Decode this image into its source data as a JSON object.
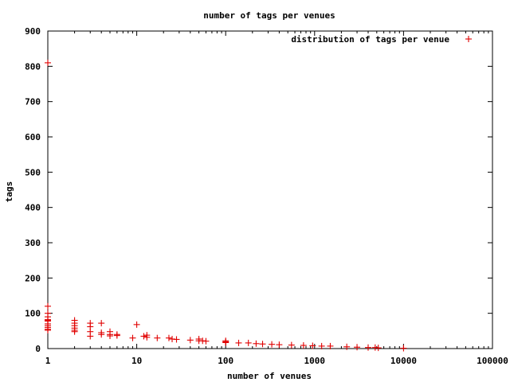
{
  "chart_data": {
    "type": "scatter",
    "title": "number of tags per venues",
    "xlabel": "number of venues",
    "ylabel": "tags",
    "x_scale": "log",
    "xlim": [
      1,
      100000
    ],
    "ylim": [
      0,
      900
    ],
    "x_ticks": [
      "1",
      "10",
      "100",
      "1000",
      "10000",
      "100000"
    ],
    "y_ticks": [
      "0",
      "100",
      "200",
      "300",
      "400",
      "500",
      "600",
      "700",
      "800",
      "900"
    ],
    "grid": false,
    "legend_position": "top-right",
    "series": [
      {
        "name": "distribution of tags per venue",
        "color": "#e00000",
        "marker": "plus",
        "points": [
          [
            1,
            810
          ],
          [
            1,
            120
          ],
          [
            1,
            100
          ],
          [
            1,
            90
          ],
          [
            1,
            82
          ],
          [
            1,
            80
          ],
          [
            1,
            78
          ],
          [
            1,
            70
          ],
          [
            1,
            65
          ],
          [
            1,
            60
          ],
          [
            1,
            55
          ],
          [
            1,
            52
          ],
          [
            2,
            80
          ],
          [
            2,
            72
          ],
          [
            2,
            65
          ],
          [
            2,
            58
          ],
          [
            2,
            52
          ],
          [
            2,
            48
          ],
          [
            3,
            72
          ],
          [
            3,
            62
          ],
          [
            3,
            48
          ],
          [
            3,
            35
          ],
          [
            4,
            72
          ],
          [
            4,
            45
          ],
          [
            4,
            40
          ],
          [
            5,
            48
          ],
          [
            5,
            40
          ],
          [
            5,
            36
          ],
          [
            6,
            40
          ],
          [
            6,
            37
          ],
          [
            9,
            30
          ],
          [
            10,
            68
          ],
          [
            12,
            35
          ],
          [
            13,
            32
          ],
          [
            13,
            38
          ],
          [
            17,
            30
          ],
          [
            23,
            30
          ],
          [
            25,
            27
          ],
          [
            28,
            26
          ],
          [
            40,
            24
          ],
          [
            50,
            27
          ],
          [
            50,
            22
          ],
          [
            55,
            22
          ],
          [
            60,
            21
          ],
          [
            100,
            22
          ],
          [
            100,
            19
          ],
          [
            100,
            17
          ],
          [
            140,
            16
          ],
          [
            180,
            16
          ],
          [
            220,
            14
          ],
          [
            260,
            13
          ],
          [
            330,
            12
          ],
          [
            400,
            11
          ],
          [
            550,
            10
          ],
          [
            750,
            9
          ],
          [
            950,
            8
          ],
          [
            1200,
            7
          ],
          [
            1500,
            7
          ],
          [
            2300,
            5
          ],
          [
            3000,
            4
          ],
          [
            4000,
            3
          ],
          [
            4800,
            3
          ],
          [
            5200,
            2
          ],
          [
            10000,
            1
          ]
        ]
      }
    ]
  }
}
